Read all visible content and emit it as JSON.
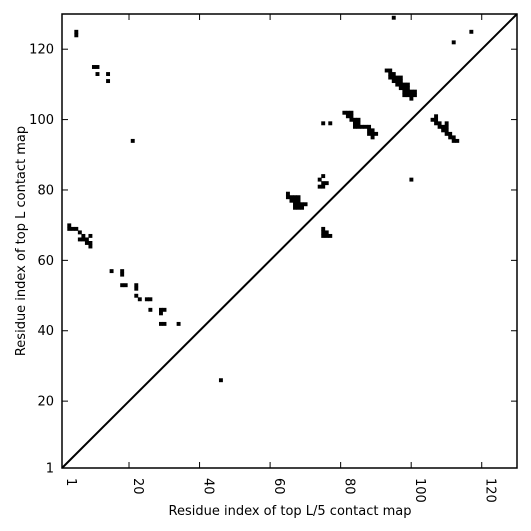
{
  "chart_data": {
    "type": "scatter",
    "title": "",
    "xlabel": "Residue index of top L/5 contact map",
    "ylabel": "Residue index of top L contact map",
    "xlim": [
      1,
      130
    ],
    "ylim": [
      1,
      130
    ],
    "x_ticks": [
      {
        "value": 1,
        "label": "1"
      },
      {
        "value": 20,
        "label": "20"
      },
      {
        "value": 40,
        "label": "40"
      },
      {
        "value": 60,
        "label": "60"
      },
      {
        "value": 80,
        "label": "80"
      },
      {
        "value": 100,
        "label": "100"
      },
      {
        "value": 120,
        "label": "120"
      }
    ],
    "y_ticks": [
      {
        "value": 1,
        "label": "1"
      },
      {
        "value": 20,
        "label": "20"
      },
      {
        "value": 40,
        "label": "40"
      },
      {
        "value": 60,
        "label": "60"
      },
      {
        "value": 80,
        "label": "80"
      },
      {
        "value": 100,
        "label": "100"
      },
      {
        "value": 120,
        "label": "120"
      }
    ],
    "x_tick_rotation": 90,
    "diagonal": true,
    "marker": "square",
    "marker_color": "#000000",
    "grid": false,
    "series": [
      {
        "points": [
          [
            5,
            125
          ],
          [
            5,
            124
          ],
          [
            10,
            115
          ],
          [
            11,
            115
          ],
          [
            11,
            113
          ],
          [
            14,
            113
          ],
          [
            14,
            111
          ],
          [
            3,
            70
          ],
          [
            3,
            69
          ],
          [
            4,
            69
          ],
          [
            5,
            69
          ],
          [
            6,
            68
          ],
          [
            7,
            67
          ],
          [
            6,
            66
          ],
          [
            7,
            66
          ],
          [
            8,
            66
          ],
          [
            8,
            65
          ],
          [
            9,
            65
          ],
          [
            9,
            67
          ],
          [
            9,
            64
          ],
          [
            15,
            57
          ],
          [
            18,
            57
          ],
          [
            18,
            56
          ],
          [
            18,
            53
          ],
          [
            19,
            53
          ],
          [
            22,
            53
          ],
          [
            22,
            52
          ],
          [
            22,
            50
          ],
          [
            23,
            49
          ],
          [
            25,
            49
          ],
          [
            26,
            49
          ],
          [
            26,
            46
          ],
          [
            29,
            46
          ],
          [
            30,
            46
          ],
          [
            29,
            45
          ],
          [
            29,
            42
          ],
          [
            30,
            42
          ],
          [
            34,
            42
          ],
          [
            21,
            94
          ],
          [
            46,
            26
          ]
        ]
      },
      {
        "points": [
          [
            65,
            79
          ],
          [
            65,
            78
          ],
          [
            66,
            78
          ],
          [
            67,
            78
          ],
          [
            68,
            78
          ],
          [
            66,
            77
          ],
          [
            67,
            77
          ],
          [
            68,
            77
          ],
          [
            67,
            76
          ],
          [
            68,
            76
          ],
          [
            69,
            76
          ],
          [
            70,
            76
          ],
          [
            67,
            75
          ],
          [
            68,
            75
          ],
          [
            69,
            75
          ],
          [
            74,
            83
          ],
          [
            75,
            84
          ],
          [
            75,
            82
          ],
          [
            76,
            82
          ],
          [
            74,
            81
          ],
          [
            75,
            81
          ],
          [
            75,
            69
          ],
          [
            75,
            68
          ],
          [
            76,
            68
          ],
          [
            75,
            67
          ],
          [
            76,
            67
          ],
          [
            77,
            67
          ],
          [
            75,
            99
          ],
          [
            77,
            99
          ]
        ]
      },
      {
        "points": [
          [
            81,
            102
          ],
          [
            82,
            102
          ],
          [
            83,
            102
          ],
          [
            82,
            101
          ],
          [
            83,
            101
          ],
          [
            83,
            100
          ],
          [
            84,
            100
          ],
          [
            85,
            100
          ],
          [
            84,
            99
          ],
          [
            85,
            99
          ],
          [
            84,
            98
          ],
          [
            85,
            98
          ],
          [
            86,
            98
          ],
          [
            87,
            98
          ],
          [
            88,
            98
          ],
          [
            88,
            97
          ],
          [
            89,
            97
          ],
          [
            88,
            96
          ],
          [
            89,
            96
          ],
          [
            90,
            96
          ],
          [
            89,
            95
          ],
          [
            93,
            114
          ],
          [
            94,
            114
          ],
          [
            94,
            113
          ],
          [
            95,
            113
          ],
          [
            94,
            112
          ],
          [
            95,
            112
          ],
          [
            96,
            112
          ],
          [
            97,
            112
          ],
          [
            95,
            111
          ],
          [
            96,
            111
          ],
          [
            97,
            111
          ],
          [
            96,
            110
          ],
          [
            97,
            110
          ],
          [
            98,
            110
          ],
          [
            99,
            110
          ],
          [
            97,
            109
          ],
          [
            98,
            109
          ],
          [
            99,
            109
          ],
          [
            98,
            108
          ],
          [
            99,
            108
          ],
          [
            100,
            108
          ],
          [
            101,
            108
          ],
          [
            98,
            107
          ],
          [
            99,
            107
          ],
          [
            100,
            107
          ],
          [
            101,
            107
          ],
          [
            100,
            106
          ],
          [
            95,
            129
          ],
          [
            100,
            83
          ]
        ]
      },
      {
        "points": [
          [
            106,
            100
          ],
          [
            107,
            101
          ],
          [
            107,
            100
          ],
          [
            107,
            99
          ],
          [
            108,
            99
          ],
          [
            108,
            98
          ],
          [
            109,
            98
          ],
          [
            110,
            99
          ],
          [
            110,
            98
          ],
          [
            109,
            97
          ],
          [
            110,
            97
          ],
          [
            110,
            96
          ],
          [
            111,
            96
          ],
          [
            111,
            95
          ],
          [
            112,
            95
          ],
          [
            112,
            94
          ],
          [
            113,
            94
          ],
          [
            112,
            122
          ],
          [
            117,
            125
          ]
        ]
      }
    ]
  }
}
